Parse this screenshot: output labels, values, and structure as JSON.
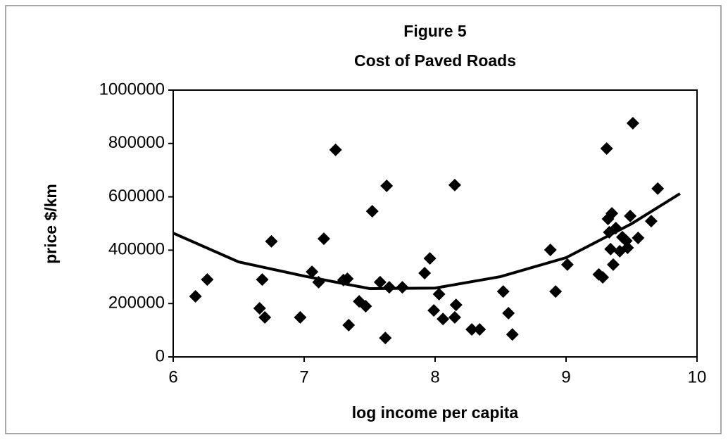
{
  "chart_data": {
    "type": "scatter",
    "title": "Figure 5",
    "subtitle": "Cost of Paved Roads",
    "x_label": "log income per capita",
    "y_label": "price $/km",
    "xlim": [
      6,
      10
    ],
    "ylim": [
      0,
      1000000
    ],
    "xticks": [
      6,
      7,
      8,
      9,
      10
    ],
    "yticks": [
      0,
      200000,
      400000,
      600000,
      800000,
      1000000
    ],
    "grid": false,
    "marker_color": "#000000",
    "line_color": "#000000",
    "x": [
      6.17,
      6.26,
      6.66,
      6.68,
      6.7,
      6.75,
      6.97,
      7.06,
      7.11,
      7.15,
      7.24,
      7.3,
      7.33,
      7.34,
      7.42,
      7.47,
      7.52,
      7.58,
      7.62,
      7.63,
      7.65,
      7.75,
      7.92,
      7.96,
      7.99,
      8.03,
      8.06,
      8.15,
      8.16,
      8.15,
      8.28,
      8.34,
      8.52,
      8.56,
      8.59,
      8.88,
      8.92,
      9.01,
      9.25,
      9.28,
      9.31,
      9.32,
      9.33,
      9.34,
      9.35,
      9.36,
      9.38,
      9.41,
      9.43,
      9.47,
      9.46,
      9.49,
      9.51,
      9.55,
      9.65,
      9.7
    ],
    "values": [
      227000,
      290000,
      182000,
      290000,
      148000,
      433000,
      148000,
      319000,
      280000,
      443000,
      776000,
      288000,
      293000,
      119000,
      208000,
      190000,
      546000,
      280000,
      71000,
      641000,
      261000,
      261000,
      314000,
      369000,
      174000,
      235000,
      142000,
      148000,
      195000,
      644000,
      103000,
      103000,
      245000,
      164000,
      84000,
      401000,
      245000,
      346000,
      309000,
      298000,
      781000,
      517000,
      467000,
      404000,
      538000,
      346000,
      483000,
      396000,
      449000,
      409000,
      435000,
      528000,
      876000,
      446000,
      509000,
      631000
    ],
    "trend": {
      "x": [
        6,
        6.5,
        7,
        7.5,
        8,
        8.5,
        9,
        9.5,
        9.87
      ],
      "values": [
        464000,
        356000,
        303000,
        256000,
        258000,
        301000,
        372000,
        499000,
        612000
      ]
    }
  }
}
